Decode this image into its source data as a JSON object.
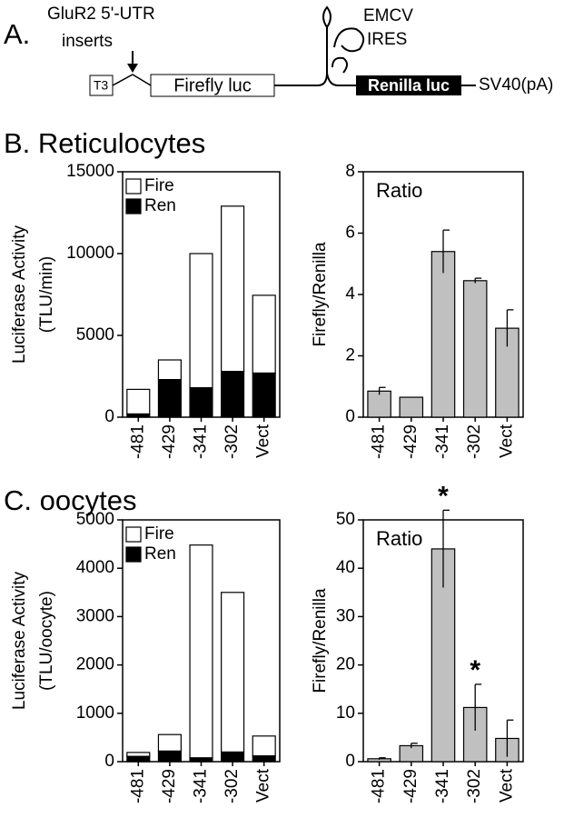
{
  "diagram": {
    "label": "A.",
    "insert_label": [
      "GluR2 5'-UTR",
      "inserts"
    ],
    "t3": "T3",
    "firefly": "Firefly luc",
    "ires": [
      "EMCV",
      "IRES"
    ],
    "renilla": "Renilla luc",
    "polya": "SV40(pA)"
  },
  "panels": [
    "B. Reticulocytes",
    "C. oocytes"
  ],
  "chart_data": [
    {
      "type": "bar",
      "stacked": true,
      "ylabel": [
        "Luciferase Activity",
        "(TLU/min)"
      ],
      "categories": [
        "-481",
        "-429",
        "-341",
        "-302",
        "Vect"
      ],
      "series": [
        {
          "name": "Ren",
          "color": "#000000",
          "values": [
            200,
            2300,
            1800,
            2800,
            2700
          ]
        },
        {
          "name": "Fire",
          "color": "#ffffff",
          "values": [
            1500,
            1200,
            8200,
            10100,
            4750
          ]
        }
      ],
      "ylim": [
        0,
        15000
      ],
      "yticks": [
        0,
        5000,
        10000,
        15000
      ],
      "legend": "upper left"
    },
    {
      "type": "bar",
      "ylabel": [
        "Firefly/Renilla"
      ],
      "categories": [
        "-481",
        "-429",
        "-341",
        "-302",
        "Vect"
      ],
      "series": [
        {
          "name": "Ratio",
          "color": "#c0c0c0",
          "values": [
            0.85,
            0.65,
            5.4,
            4.45,
            2.9
          ],
          "errors": [
            0.12,
            0,
            0.7,
            0.08,
            0.6
          ]
        }
      ],
      "ylim": [
        0,
        8
      ],
      "yticks": [
        0,
        2,
        4,
        6,
        8
      ],
      "legend": "upper left"
    },
    {
      "type": "bar",
      "stacked": true,
      "ylabel": [
        "Luciferase Activity",
        "(TLU/oocyte)"
      ],
      "categories": [
        "-481",
        "-429",
        "-341",
        "-302",
        "Vect"
      ],
      "series": [
        {
          "name": "Ren",
          "color": "#000000",
          "values": [
            110,
            220,
            80,
            200,
            120
          ]
        },
        {
          "name": "Fire",
          "color": "#ffffff",
          "values": [
            80,
            340,
            4400,
            3300,
            410
          ]
        }
      ],
      "ylim": [
        0,
        5000
      ],
      "yticks": [
        0,
        1000,
        2000,
        3000,
        4000,
        5000
      ],
      "legend": "upper left"
    },
    {
      "type": "bar",
      "ylabel": [
        "Firefly/Renilla"
      ],
      "categories": [
        "-481",
        "-429",
        "-341",
        "-302",
        "Vect"
      ],
      "series": [
        {
          "name": "Ratio",
          "color": "#c0c0c0",
          "values": [
            0.6,
            3.3,
            44,
            11.2,
            4.8
          ],
          "errors": [
            0.2,
            0.5,
            8,
            4.8,
            3.8
          ],
          "significance": [
            null,
            null,
            "*",
            "*",
            null
          ]
        }
      ],
      "ylim": [
        0,
        50
      ],
      "yticks": [
        0,
        10,
        20,
        30,
        40,
        50
      ],
      "legend": "upper left"
    }
  ]
}
